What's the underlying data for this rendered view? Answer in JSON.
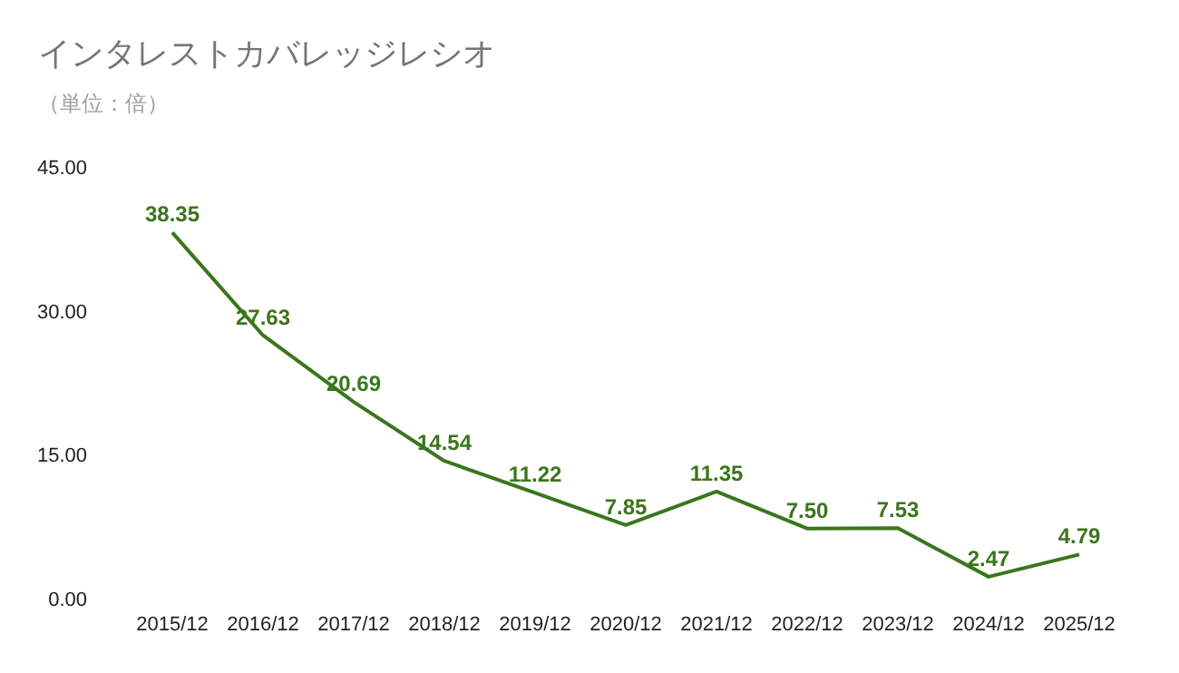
{
  "chart_data": {
    "type": "line",
    "title": "インタレストカバレッジレシオ",
    "subtitle": "（単位：倍）",
    "categories": [
      "2015/12",
      "2016/12",
      "2017/12",
      "2018/12",
      "2019/12",
      "2020/12",
      "2021/12",
      "2022/12",
      "2023/12",
      "2024/12",
      "2025/12"
    ],
    "series": [
      {
        "color": "#3a761c",
        "values": [
          38.35,
          27.63,
          20.69,
          14.54,
          11.22,
          7.85,
          11.35,
          7.5,
          7.53,
          2.47,
          4.79
        ],
        "value_labels": [
          "38.35",
          "27.63",
          "20.69",
          "14.54",
          "11.22",
          "7.85",
          "11.35",
          "7.50",
          "7.53",
          "2.47",
          "4.79"
        ]
      }
    ],
    "ylim": [
      0,
      45
    ],
    "yticks": [
      {
        "value": 0,
        "label": "0.00"
      },
      {
        "value": 15,
        "label": "15.00"
      },
      {
        "value": 30,
        "label": "30.00"
      },
      {
        "value": 45,
        "label": "45.00"
      }
    ],
    "grid": false,
    "marker": "none",
    "line_style": "solid"
  }
}
